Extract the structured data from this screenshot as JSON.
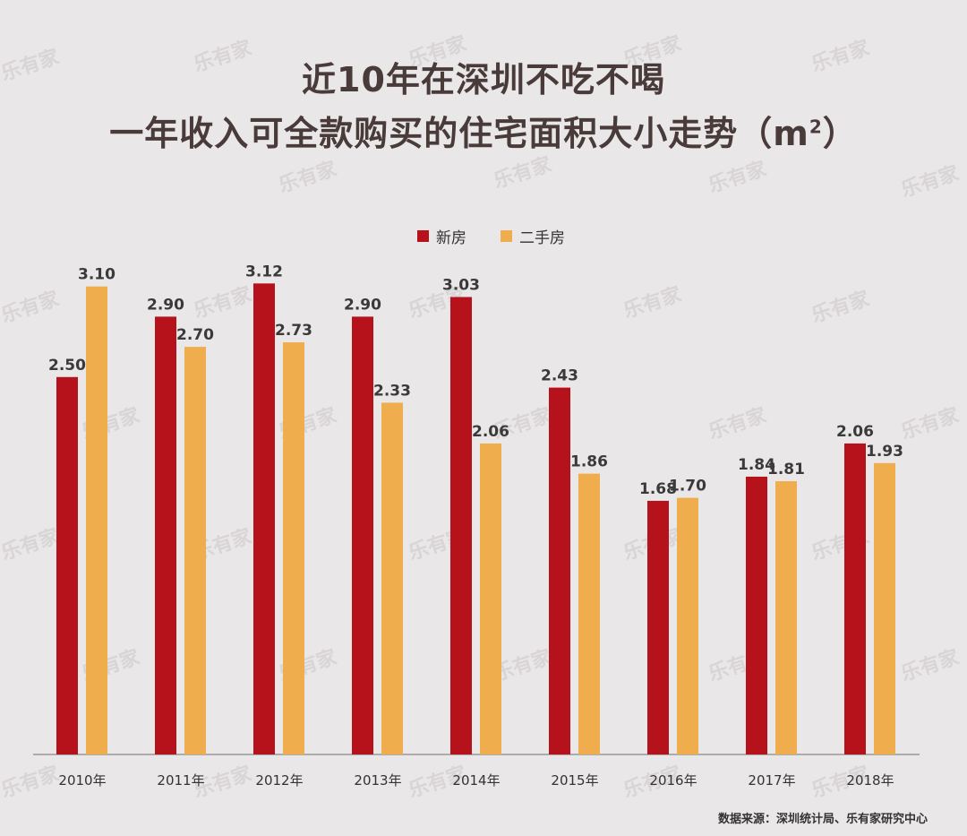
{
  "title_line1": "近10年在深圳不吃不喝",
  "title_line2": "一年收入可全款购买的住宅面积大小走势（m",
  "title_sup": "2",
  "title_line2_tail": "）",
  "source": "数据来源：深圳统计局、乐有家研究中心",
  "watermark": "乐有家",
  "colors": {
    "new": "#b5121b",
    "second": "#f0ad4e",
    "axis": "#999999",
    "label": "#3a3a3a"
  },
  "chart_data": {
    "type": "bar",
    "categories": [
      "2010年",
      "2011年",
      "2012年",
      "2013年",
      "2014年",
      "2015年",
      "2016年",
      "2017年",
      "2018年"
    ],
    "series": [
      {
        "name": "新房",
        "values": [
          2.5,
          2.9,
          3.12,
          2.9,
          3.03,
          2.43,
          1.68,
          1.84,
          2.06
        ]
      },
      {
        "name": "二手房",
        "values": [
          3.1,
          2.7,
          2.73,
          2.33,
          2.06,
          1.86,
          1.7,
          1.81,
          1.93
        ]
      }
    ],
    "ylim": [
      0,
      3.3
    ]
  }
}
